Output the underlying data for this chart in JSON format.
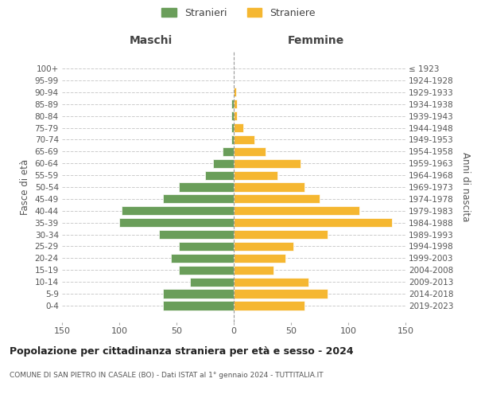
{
  "age_groups": [
    "100+",
    "95-99",
    "90-94",
    "85-89",
    "80-84",
    "75-79",
    "70-74",
    "65-69",
    "60-64",
    "55-59",
    "50-54",
    "45-49",
    "40-44",
    "35-39",
    "30-34",
    "25-29",
    "20-24",
    "15-19",
    "10-14",
    "5-9",
    "0-4"
  ],
  "birth_years": [
    "≤ 1923",
    "1924-1928",
    "1929-1933",
    "1934-1938",
    "1939-1943",
    "1944-1948",
    "1949-1953",
    "1954-1958",
    "1959-1963",
    "1964-1968",
    "1969-1973",
    "1974-1978",
    "1979-1983",
    "1984-1988",
    "1989-1993",
    "1994-1998",
    "1999-2003",
    "2004-2008",
    "2009-2013",
    "2014-2018",
    "2019-2023"
  ],
  "maschi": [
    0,
    0,
    0,
    2,
    2,
    2,
    2,
    10,
    18,
    25,
    48,
    62,
    98,
    100,
    65,
    48,
    55,
    48,
    38,
    62,
    62
  ],
  "femmine": [
    0,
    0,
    2,
    3,
    3,
    8,
    18,
    28,
    58,
    38,
    62,
    75,
    110,
    138,
    82,
    52,
    45,
    35,
    65,
    82,
    62
  ],
  "color_maschi": "#6a9e5a",
  "color_femmine": "#f5b731",
  "title": "Popolazione per cittadinanza straniera per età e sesso - 2024",
  "subtitle": "COMUNE DI SAN PIETRO IN CASALE (BO) - Dati ISTAT al 1° gennaio 2024 - TUTTITALIA.IT",
  "ylabel_left": "Fasce di età",
  "ylabel_right": "Anni di nascita",
  "xlabel_left": "Maschi",
  "xlabel_right": "Femmine",
  "legend_maschi": "Stranieri",
  "legend_femmine": "Straniere",
  "xlim": 150,
  "bg_color": "#ffffff",
  "grid_color": "#cccccc"
}
